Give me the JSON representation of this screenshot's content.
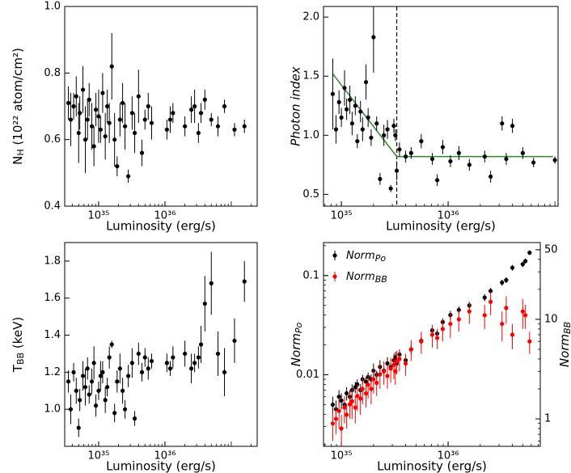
{
  "chart_data": [
    {
      "type": "scatter",
      "xscale": "log",
      "xlim": [
        3.08e+34,
        2.46e+37
      ],
      "xticks": [
        {
          "value": 1e+35,
          "label": "10³⁵"
        },
        {
          "value": 1e+36,
          "label": "10³⁶"
        }
      ],
      "ylim": [
        0.4,
        1.0
      ],
      "yticks": [
        0.4,
        0.6,
        0.8,
        {
          "value": 1,
          "label": "1.0"
        }
      ],
      "xlabel": "Luminosity (erg/s)",
      "ylabel": {
        "text": "N",
        "sub": "H",
        "suffix": " (10²² atom/cm²)"
      },
      "x": [
        3.5e+34,
        3.8e+34,
        4.2e+34,
        4.6e+34,
        5e+34,
        5.2e+34,
        5.8e+34,
        6.3e+34,
        6.8e+34,
        7.2e+34,
        7.9e+34,
        8.5e+34,
        9.1e+34,
        1e+35,
        1.07e+35,
        1.15e+35,
        1.26e+35,
        1.35e+35,
        1.45e+35,
        1.58e+35,
        1.74e+35,
        1.9e+35,
        2.1e+35,
        2.3e+35,
        2.5e+35,
        2.8e+35,
        3.2e+35,
        3.5e+35,
        4e+35,
        4.5e+35,
        5e+35,
        5.6e+35,
        6.3e+35,
        1.07e+36,
        1.2e+36,
        1.32e+36,
        2e+36,
        2.5e+36,
        2.8e+36,
        3.2e+36,
        3.5e+36,
        4e+36,
        5e+36,
        6.3e+36,
        7.9e+36,
        1.12e+37,
        1.58e+37
      ],
      "series": [
        {
          "color": "#000000",
          "values": [
            0.71,
            0.66,
            0.7,
            0.73,
            0.62,
            0.68,
            0.75,
            0.6,
            0.66,
            0.72,
            0.64,
            0.58,
            0.69,
            0.67,
            0.63,
            0.74,
            0.61,
            0.7,
            0.65,
            0.82,
            0.6,
            0.52,
            0.66,
            0.71,
            0.64,
            0.49,
            0.68,
            0.62,
            0.73,
            0.56,
            0.66,
            0.7,
            0.65,
            0.63,
            0.66,
            0.68,
            0.64,
            0.69,
            0.7,
            0.62,
            0.68,
            0.72,
            0.66,
            0.64,
            0.7,
            0.63,
            0.64
          ],
          "errors": [
            0.05,
            0.08,
            0.04,
            0.06,
            0.09,
            0.05,
            0.07,
            0.1,
            0.06,
            0.05,
            0.07,
            0.06,
            0.05,
            0.08,
            0.04,
            0.06,
            0.07,
            0.05,
            0.06,
            0.1,
            0.08,
            0.03,
            0.05,
            0.06,
            0.07,
            0.02,
            0.05,
            0.06,
            0.08,
            0.04,
            0.03,
            0.04,
            0.05,
            0.03,
            0.04,
            0.03,
            0.03,
            0.04,
            0.05,
            0.03,
            0.03,
            0.03,
            0.02,
            0.03,
            0.02,
            0.02,
            0.02
          ]
        }
      ]
    },
    {
      "type": "scatter",
      "xscale": "log",
      "xlim": [
        6.8e+34,
        1.07e+37
      ],
      "xticks": [
        {
          "value": 1e+35,
          "label": "10³⁵"
        },
        {
          "value": 1e+36,
          "label": "10³⁶"
        }
      ],
      "ylim": [
        0.4,
        2.09
      ],
      "yticks": [
        0.5,
        {
          "value": 1,
          "label": "1.0"
        },
        1.5,
        {
          "value": 2,
          "label": "2.0"
        }
      ],
      "xlabel": "Luminosity (erg/s)",
      "ylabel": "Photon index",
      "ylabel_italic": true,
      "vline": 3.3e+35,
      "fit": {
        "color": "#2a8a2a",
        "x": [
          8.3e+34,
          3.3e+35,
          9.6e+36
        ],
        "y": [
          1.52,
          0.82,
          0.82
        ]
      },
      "x": [
        8.3e+34,
        8.9e+34,
        9.5e+34,
        1e+35,
        1.07e+35,
        1.12e+35,
        1.2e+35,
        1.26e+35,
        1.35e+35,
        1.41e+35,
        1.51e+35,
        1.58e+35,
        1.7e+35,
        1.78e+35,
        1.9e+35,
        2e+35,
        2.14e+35,
        2.3e+35,
        2.5e+35,
        2.7e+35,
        2.9e+35,
        3.1e+35,
        3.2e+35,
        3.3e+35,
        3.5e+35,
        4e+35,
        4.5e+35,
        5.6e+35,
        7.1e+35,
        7.9e+35,
        8.9e+35,
        1.05e+36,
        1.26e+36,
        1.58e+36,
        2.2e+36,
        2.5e+36,
        3.2e+36,
        3.5e+36,
        4e+36,
        5e+36,
        6.3e+36,
        1e+37
      ],
      "series": [
        {
          "color": "#000000",
          "values": [
            1.35,
            1.05,
            1.28,
            1.15,
            1.4,
            1.22,
            1.3,
            1.1,
            1.25,
            0.95,
            1.2,
            1.05,
            1.45,
            1.15,
            0.98,
            1.83,
            1.1,
            0.63,
            1.0,
            1.05,
            0.55,
            1.08,
            1.0,
            0.7,
            0.88,
            0.82,
            0.85,
            0.95,
            0.8,
            0.62,
            0.9,
            0.78,
            0.85,
            0.75,
            0.82,
            0.65,
            1.1,
            0.8,
            1.08,
            0.85,
            0.77,
            0.79
          ],
          "errors": [
            0.3,
            0.12,
            0.1,
            0.08,
            0.15,
            0.09,
            0.12,
            0.1,
            0.08,
            0.06,
            0.09,
            0.1,
            0.15,
            0.08,
            0.07,
            0.3,
            0.06,
            0.05,
            0.09,
            0.08,
            0.03,
            0.06,
            0.05,
            0.08,
            0.06,
            0.05,
            0.05,
            0.06,
            0.05,
            0.05,
            0.06,
            0.05,
            0.06,
            0.05,
            0.05,
            0.05,
            0.06,
            0.05,
            0.06,
            0.05,
            0.04,
            0.03
          ]
        }
      ]
    },
    {
      "type": "scatter",
      "xscale": "log",
      "xlim": [
        3.08e+34,
        2.46e+37
      ],
      "xticks": [
        {
          "value": 1e+35,
          "label": "10³⁵"
        },
        {
          "value": 1e+36,
          "label": "10³⁶"
        }
      ],
      "ylim": [
        0.8,
        1.9
      ],
      "yticks": [
        {
          "value": 1,
          "label": "1.0"
        },
        1.2,
        1.4,
        1.6,
        1.8
      ],
      "xlabel": "Luminosity (erg/s)",
      "ylabel": {
        "text": "T",
        "sub": "BB",
        "suffix": " (keV)"
      },
      "x": [
        3.5e+34,
        3.8e+34,
        4.2e+34,
        4.6e+34,
        5e+34,
        5.2e+34,
        5.8e+34,
        6.3e+34,
        6.8e+34,
        7.2e+34,
        7.9e+34,
        8.5e+34,
        9.1e+34,
        1e+35,
        1.07e+35,
        1.15e+35,
        1.26e+35,
        1.35e+35,
        1.45e+35,
        1.58e+35,
        1.74e+35,
        1.9e+35,
        2.1e+35,
        2.3e+35,
        2.5e+35,
        2.8e+35,
        3.2e+35,
        3.5e+35,
        4e+35,
        4.5e+35,
        5e+35,
        5.6e+35,
        6.3e+35,
        1.07e+36,
        1.2e+36,
        1.32e+36,
        2e+36,
        2.5e+36,
        2.8e+36,
        3.2e+36,
        3.5e+36,
        4e+36,
        5e+36,
        6.3e+36,
        7.9e+36,
        1.12e+37,
        1.58e+37
      ],
      "series": [
        {
          "color": "#000000",
          "values": [
            1.15,
            1.0,
            1.2,
            1.1,
            0.9,
            1.05,
            1.18,
            1.12,
            1.22,
            1.08,
            1.15,
            1.25,
            1.02,
            1.1,
            1.18,
            1.2,
            1.05,
            1.12,
            1.28,
            1.35,
            0.98,
            1.15,
            1.22,
            1.1,
            1.0,
            1.18,
            1.25,
            0.95,
            1.3,
            1.2,
            1.28,
            1.22,
            1.26,
            1.25,
            1.22,
            1.28,
            1.3,
            1.22,
            1.25,
            1.28,
            1.35,
            1.57,
            1.68,
            1.3,
            1.2,
            1.37,
            1.69
          ],
          "errors": [
            0.06,
            0.08,
            0.05,
            0.07,
            0.05,
            0.06,
            0.08,
            0.1,
            0.06,
            0.05,
            0.07,
            0.09,
            0.06,
            0.05,
            0.08,
            0.06,
            0.07,
            0.05,
            0.06,
            0.02,
            0.05,
            0.06,
            0.08,
            0.07,
            0.05,
            0.06,
            0.08,
            0.04,
            0.06,
            0.05,
            0.05,
            0.06,
            0.04,
            0.05,
            0.04,
            0.06,
            0.07,
            0.08,
            0.05,
            0.06,
            0.1,
            0.15,
            0.17,
            0.12,
            0.13,
            0.12,
            0.11
          ]
        }
      ]
    },
    {
      "type": "scatter",
      "xscale": "log",
      "yscale": "log",
      "y2scale": "log",
      "xlim": [
        6.8e+34,
        7.3e+36
      ],
      "xticks": [
        {
          "value": 1e+35,
          "label": "10³⁵"
        },
        {
          "value": 1e+36,
          "label": "10³⁶"
        }
      ],
      "ylim": [
        0.0019,
        0.215
      ],
      "yticks": [
        0.01,
        0.1
      ],
      "y2lim": [
        0.53,
        59
      ],
      "y2ticks": [
        1,
        10,
        50
      ],
      "xlabel": "Luminosity (erg/s)",
      "ylabel": {
        "text": "Norm",
        "sub": "Po"
      },
      "ylabel_italic": true,
      "y2label": {
        "text": "Norm",
        "sub": "BB"
      },
      "legend": "upper left",
      "x": [
        8.3e+34,
        8.9e+34,
        9.5e+34,
        1e+35,
        1.07e+35,
        1.12e+35,
        1.2e+35,
        1.26e+35,
        1.35e+35,
        1.41e+35,
        1.51e+35,
        1.58e+35,
        1.7e+35,
        1.78e+35,
        1.9e+35,
        2e+35,
        2.14e+35,
        2.3e+35,
        2.5e+35,
        2.7e+35,
        2.9e+35,
        3.1e+35,
        3.2e+35,
        3.3e+35,
        3.5e+35,
        4e+35,
        4.5e+35,
        5.6e+35,
        7.1e+35,
        7.9e+35,
        8.9e+35,
        1.05e+36,
        1.26e+36,
        1.58e+36,
        2.2e+36,
        2.5e+36,
        3.2e+36,
        3.5e+36,
        4e+36,
        5e+36,
        5.3e+36,
        5.8e+36
      ],
      "series": [
        {
          "name": {
            "text": "Norm",
            "sub": "Po"
          },
          "color": "#000000",
          "values": [
            0.005,
            0.0045,
            0.006,
            0.0055,
            0.005,
            0.0065,
            0.006,
            0.007,
            0.0075,
            0.008,
            0.007,
            0.009,
            0.0085,
            0.0095,
            0.009,
            0.011,
            0.01,
            0.012,
            0.011,
            0.013,
            0.012,
            0.014,
            0.015,
            0.013,
            0.016,
            0.014,
            0.018,
            0.022,
            0.028,
            0.026,
            0.034,
            0.04,
            0.045,
            0.05,
            0.06,
            0.07,
            0.085,
            0.09,
            0.12,
            0.13,
            0.14,
            0.17
          ],
          "errors": [
            0.001,
            0.001,
            0.001,
            0.001,
            0.001,
            0.001,
            0.001,
            0.001,
            0.001,
            0.001,
            0.001,
            0.001,
            0.001,
            0.001,
            0.001,
            0.002,
            0.001,
            0.002,
            0.001,
            0.002,
            0.001,
            0.002,
            0.002,
            0.001,
            0.002,
            0.001,
            0.002,
            0.002,
            0.003,
            0.002,
            0.003,
            0.004,
            0.004,
            0.004,
            0.005,
            0.005,
            0.006,
            0.006,
            0.008,
            0.008,
            0.008,
            0.009
          ]
        },
        {
          "name": {
            "text": "Norm",
            "sub": "BB"
          },
          "color": "#ff0000",
          "axis": "y2",
          "values": [
            0.9,
            1.0,
            1.2,
            0.8,
            1.3,
            1.1,
            1.4,
            1.5,
            1.3,
            1.7,
            1.6,
            2.0,
            1.8,
            2.2,
            2.0,
            2.5,
            2.3,
            2.8,
            3.0,
            2.7,
            3.2,
            3.5,
            3.0,
            3.8,
            4.0,
            3.6,
            5.0,
            6.0,
            7.0,
            6.5,
            8.0,
            9.0,
            10.0,
            12.0,
            11.0,
            15.0,
            9.0,
            13.0,
            7.0,
            12.0,
            11.0,
            6.0
          ],
          "errors": [
            0.3,
            0.3,
            0.4,
            0.3,
            0.4,
            0.3,
            0.4,
            0.5,
            0.4,
            0.5,
            0.5,
            0.6,
            0.5,
            0.6,
            0.6,
            0.7,
            0.6,
            0.8,
            0.8,
            0.7,
            0.9,
            1.0,
            0.8,
            1.0,
            1.0,
            0.9,
            1.2,
            1.5,
            1.8,
            1.5,
            2.0,
            2.5,
            2.5,
            3.0,
            3.0,
            4.0,
            3.0,
            4.0,
            2.0,
            4.0,
            3.0,
            1.5
          ]
        }
      ]
    }
  ]
}
